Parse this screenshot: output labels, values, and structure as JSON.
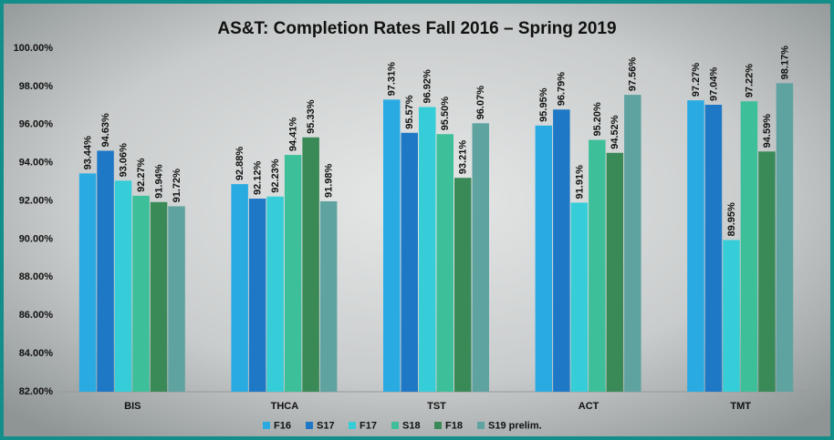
{
  "chart_data": {
    "type": "bar",
    "title": "AS&T: Completion Rates Fall 2016 – Spring 2019",
    "categories": [
      "BIS",
      "THCA",
      "TST",
      "ACT",
      "TMT"
    ],
    "series": [
      {
        "name": "F16",
        "color": "#29abe2",
        "values": [
          93.44,
          92.88,
          97.31,
          95.95,
          97.27
        ],
        "value_labels": [
          "93.44%",
          "92.88%",
          "97.31%",
          "95.95%",
          "97.27%"
        ]
      },
      {
        "name": "S17",
        "color": "#1f78c6",
        "values": [
          94.63,
          92.12,
          95.57,
          96.79,
          97.04
        ],
        "value_labels": [
          "94.63%",
          "92.12%",
          "95.57%",
          "96.79%",
          "97.04%"
        ]
      },
      {
        "name": "F17",
        "color": "#35cdd8",
        "values": [
          93.06,
          92.23,
          96.92,
          91.91,
          89.95
        ],
        "value_labels": [
          "93.06%",
          "92.23%",
          "96.92%",
          "91.91%",
          "89.95%"
        ]
      },
      {
        "name": "S18",
        "color": "#3dbf9a",
        "values": [
          92.27,
          94.41,
          95.5,
          95.2,
          97.22
        ],
        "value_labels": [
          "92.27%",
          "94.41%",
          "95.50%",
          "95.20%",
          "97.22%"
        ]
      },
      {
        "name": "F18",
        "color": "#3a8a58",
        "values": [
          91.94,
          95.33,
          93.21,
          94.52,
          94.59
        ],
        "value_labels": [
          "91.94%",
          "95.33%",
          "93.21%",
          "94.52%",
          "94.59%"
        ]
      },
      {
        "name": "S19 prelim.",
        "color": "#5fa3a0",
        "values": [
          91.72,
          91.98,
          96.07,
          97.56,
          98.17
        ],
        "value_labels": [
          "91.72%",
          "91.98%",
          "96.07%",
          "97.56%",
          "98.17%"
        ]
      }
    ],
    "ylim": [
      82,
      100
    ],
    "yticks": [
      {
        "value": 82,
        "label": "82.00%"
      },
      {
        "value": 84,
        "label": "84.00%"
      },
      {
        "value": 86,
        "label": "86.00%"
      },
      {
        "value": 88,
        "label": "88.00%"
      },
      {
        "value": 90,
        "label": "90.00%"
      },
      {
        "value": 92,
        "label": "92.00%"
      },
      {
        "value": 94,
        "label": "94.00%"
      },
      {
        "value": 96,
        "label": "96.00%"
      },
      {
        "value": 98,
        "label": "98.00%"
      },
      {
        "value": 100,
        "label": "100.00%"
      }
    ],
    "grid": false,
    "legend": "bottom"
  }
}
